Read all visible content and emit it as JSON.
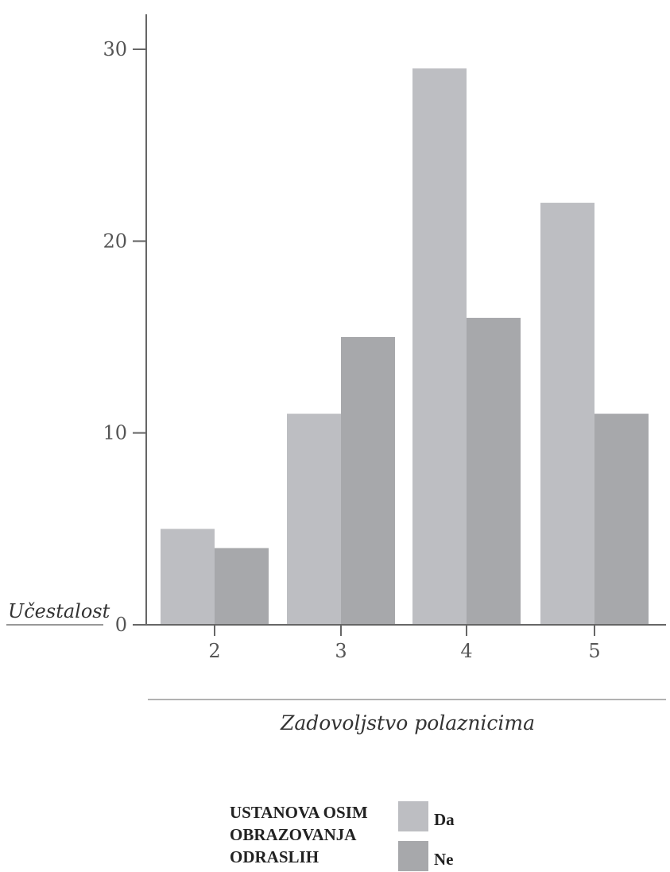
{
  "chart_data": {
    "type": "bar",
    "xlabel": "Zadovoljstvo polaznicima",
    "ylabel": "Učestalost",
    "categories": [
      "2",
      "3",
      "4",
      "5"
    ],
    "ylim": [
      0,
      30
    ],
    "yticks": [
      "0",
      "10",
      "20",
      "30"
    ],
    "grid": false,
    "legend_position": "bottom",
    "legend_title": [
      "USTANOVA OSIM",
      "OBRAZOVANJA",
      "ODRASLIH"
    ],
    "series": [
      {
        "name": "Da",
        "values": [
          5,
          11,
          29,
          22
        ],
        "color": "#bdbec2"
      },
      {
        "name": "Ne",
        "values": [
          4,
          15,
          16,
          11
        ],
        "color": "#a7a8ab"
      }
    ]
  }
}
